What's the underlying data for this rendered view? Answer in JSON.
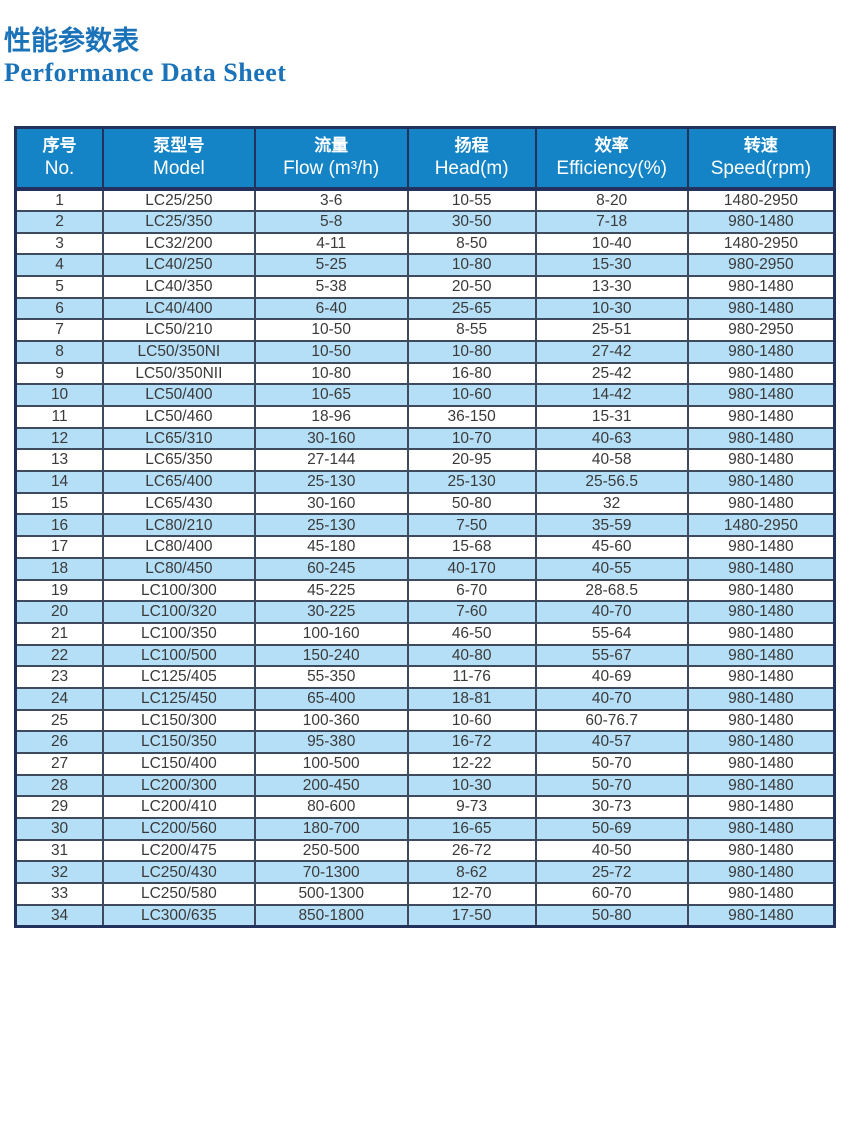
{
  "header": {
    "title_zh": "性能参数表",
    "title_en": "Performance Data Sheet"
  },
  "table": {
    "columns": [
      {
        "key": "no",
        "zh": "序号",
        "en": "No."
      },
      {
        "key": "model",
        "zh": "泵型号",
        "en": "Model"
      },
      {
        "key": "flow",
        "zh": "流量",
        "en": "Flow (m³/h)"
      },
      {
        "key": "head",
        "zh": "扬程",
        "en": "Head(m)"
      },
      {
        "key": "efficiency",
        "zh": "效率",
        "en": "Efficiency(%)"
      },
      {
        "key": "speed",
        "zh": "转速",
        "en": "Speed(rpm)"
      }
    ],
    "rows": [
      [
        "1",
        "LC25/250",
        "3-6",
        "10-55",
        "8-20",
        "1480-2950"
      ],
      [
        "2",
        "LC25/350",
        "5-8",
        "30-50",
        "7-18",
        "980-1480"
      ],
      [
        "3",
        "LC32/200",
        "4-11",
        "8-50",
        "10-40",
        "1480-2950"
      ],
      [
        "4",
        "LC40/250",
        "5-25",
        "10-80",
        "15-30",
        "980-2950"
      ],
      [
        "5",
        "LC40/350",
        "5-38",
        "20-50",
        "13-30",
        "980-1480"
      ],
      [
        "6",
        "LC40/400",
        "6-40",
        "25-65",
        "10-30",
        "980-1480"
      ],
      [
        "7",
        "LC50/210",
        "10-50",
        "8-55",
        "25-51",
        "980-2950"
      ],
      [
        "8",
        "LC50/350NI",
        "10-50",
        "10-80",
        "27-42",
        "980-1480"
      ],
      [
        "9",
        "LC50/350NII",
        "10-80",
        "16-80",
        "25-42",
        "980-1480"
      ],
      [
        "10",
        "LC50/400",
        "10-65",
        "10-60",
        "14-42",
        "980-1480"
      ],
      [
        "11",
        "LC50/460",
        "18-96",
        "36-150",
        "15-31",
        "980-1480"
      ],
      [
        "12",
        "LC65/310",
        "30-160",
        "10-70",
        "40-63",
        "980-1480"
      ],
      [
        "13",
        "LC65/350",
        "27-144",
        "20-95",
        "40-58",
        "980-1480"
      ],
      [
        "14",
        "LC65/400",
        "25-130",
        "25-130",
        "25-56.5",
        "980-1480"
      ],
      [
        "15",
        "LC65/430",
        "30-160",
        "50-80",
        "32",
        "980-1480"
      ],
      [
        "16",
        "LC80/210",
        "25-130",
        "7-50",
        "35-59",
        "1480-2950"
      ],
      [
        "17",
        "LC80/400",
        "45-180",
        "15-68",
        "45-60",
        "980-1480"
      ],
      [
        "18",
        "LC80/450",
        "60-245",
        "40-170",
        "40-55",
        "980-1480"
      ],
      [
        "19",
        "LC100/300",
        "45-225",
        "6-70",
        "28-68.5",
        "980-1480"
      ],
      [
        "20",
        "LC100/320",
        "30-225",
        "7-60",
        "40-70",
        "980-1480"
      ],
      [
        "21",
        "LC100/350",
        "100-160",
        "46-50",
        "55-64",
        "980-1480"
      ],
      [
        "22",
        "LC100/500",
        "150-240",
        "40-80",
        "55-67",
        "980-1480"
      ],
      [
        "23",
        "LC125/405",
        "55-350",
        "11-76",
        "40-69",
        "980-1480"
      ],
      [
        "24",
        "LC125/450",
        "65-400",
        "18-81",
        "40-70",
        "980-1480"
      ],
      [
        "25",
        "LC150/300",
        "100-360",
        "10-60",
        "60-76.7",
        "980-1480"
      ],
      [
        "26",
        "LC150/350",
        "95-380",
        "16-72",
        "40-57",
        "980-1480"
      ],
      [
        "27",
        "LC150/400",
        "100-500",
        "12-22",
        "50-70",
        "980-1480"
      ],
      [
        "28",
        "LC200/300",
        "200-450",
        "10-30",
        "50-70",
        "980-1480"
      ],
      [
        "29",
        "LC200/410",
        "80-600",
        "9-73",
        "30-73",
        "980-1480"
      ],
      [
        "30",
        "LC200/560",
        "180-700",
        "16-65",
        "50-69",
        "980-1480"
      ],
      [
        "31",
        "LC200/475",
        "250-500",
        "26-72",
        "40-50",
        "980-1480"
      ],
      [
        "32",
        "LC250/430",
        "70-1300",
        "8-62",
        "25-72",
        "980-1480"
      ],
      [
        "33",
        "LC250/580",
        "500-1300",
        "12-70",
        "60-70",
        "980-1480"
      ],
      [
        "34",
        "LC300/635",
        "850-1800",
        "17-50",
        "50-80",
        "980-1480"
      ]
    ]
  },
  "colors": {
    "title_blue": "#1a72b8",
    "header_bg": "#1484c6",
    "row_alt": "#b5dff6",
    "border_dark": "#22325c",
    "border_body": "#3e4a5e",
    "cell_text": "#3a3a3a"
  }
}
